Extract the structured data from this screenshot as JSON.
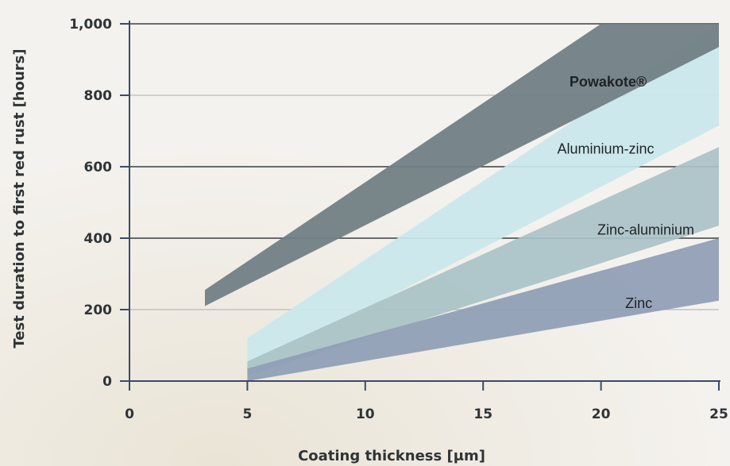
{
  "chart_data": {
    "type": "area",
    "xlabel": "Coating thickness [μm]",
    "ylabel": "Test duration to first red rust [hours]",
    "xlim": [
      0,
      25
    ],
    "ylim": [
      0,
      1000
    ],
    "x_ticks": [
      0,
      5,
      10,
      15,
      20,
      25
    ],
    "x_tick_labels": [
      "0",
      "5",
      "10",
      "15",
      "20",
      "25"
    ],
    "y_ticks": [
      0,
      200,
      400,
      600,
      800,
      1000
    ],
    "y_tick_labels": [
      "0",
      "200",
      "400",
      "600",
      "800",
      "1,000"
    ],
    "grid": "horizontal",
    "series": [
      {
        "name": "Zinc",
        "color": "#8e9db5",
        "x": [
          5,
          25
        ],
        "lower": [
          0,
          225
        ],
        "upper": [
          35,
          400
        ]
      },
      {
        "name": "Zinc-aluminium",
        "color": "#a9c2c7",
        "x": [
          5,
          25
        ],
        "lower": [
          15,
          435
        ],
        "upper": [
          55,
          655
        ]
      },
      {
        "name": "Aluminium-zinc",
        "color": "#c9e7eb",
        "x": [
          5,
          25
        ],
        "lower": [
          30,
          715
        ],
        "upper": [
          120,
          1000
        ]
      },
      {
        "name": "Powakote®",
        "color": "#717f85",
        "x": [
          3.2,
          20,
          25
        ],
        "lower": [
          210,
          825,
          935
        ],
        "upper": [
          255,
          1000,
          1000
        ]
      }
    ]
  }
}
